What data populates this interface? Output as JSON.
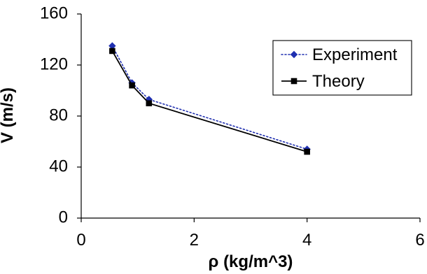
{
  "chart_data": {
    "type": "line",
    "title": "",
    "xlabel": "ρ (kg/m^3)",
    "ylabel": "V (m/s)",
    "xlim": [
      0,
      6
    ],
    "ylim": [
      0,
      160
    ],
    "xticks": [
      0,
      2,
      4,
      6
    ],
    "yticks": [
      0,
      40,
      80,
      120,
      160
    ],
    "xtick_labels": [
      "0",
      "2",
      "4",
      "6"
    ],
    "ytick_labels": [
      "0",
      "40",
      "80",
      "120",
      "160"
    ],
    "grid": false,
    "legend": "right",
    "series": [
      {
        "name": "Experiment",
        "color": "#1f2fb0",
        "style": "dotted",
        "marker": "diamond",
        "x": [
          0.55,
          0.9,
          1.2,
          4.0
        ],
        "y": [
          135,
          106,
          93,
          54
        ]
      },
      {
        "name": "Theory",
        "color": "#000000",
        "style": "solid",
        "marker": "square",
        "x": [
          0.55,
          0.9,
          1.2,
          4.0
        ],
        "y": [
          131,
          104,
          90,
          52
        ]
      }
    ]
  }
}
